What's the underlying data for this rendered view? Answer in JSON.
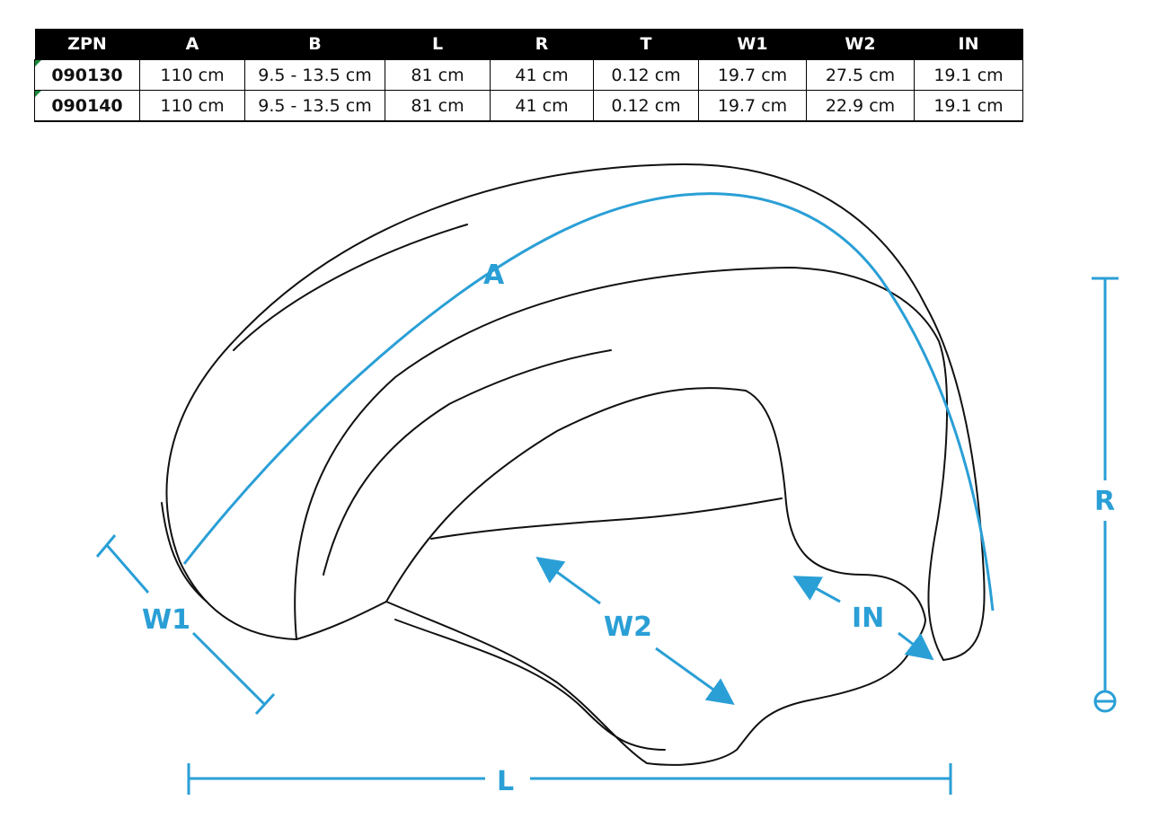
{
  "table": {
    "headers": [
      "ZPN",
      "A",
      "B",
      "L",
      "R",
      "T",
      "W1",
      "W2",
      "IN"
    ],
    "rows": [
      [
        "090130",
        "110 cm",
        "9.5 - 13.5 cm",
        "81 cm",
        "41 cm",
        "0.12 cm",
        "19.7 cm",
        "27.5 cm",
        "19.1 cm"
      ],
      [
        "090140",
        "110 cm",
        "9.5 - 13.5 cm",
        "81 cm",
        "41 cm",
        "0.12 cm",
        "19.7 cm",
        "22.9 cm",
        "19.1 cm"
      ]
    ]
  },
  "diagram": {
    "labels": {
      "a": "A",
      "w1": "W1",
      "w2": "W2",
      "in": "IN",
      "r": "R",
      "l": "L"
    },
    "annotation_color": "#2a9fd6"
  }
}
